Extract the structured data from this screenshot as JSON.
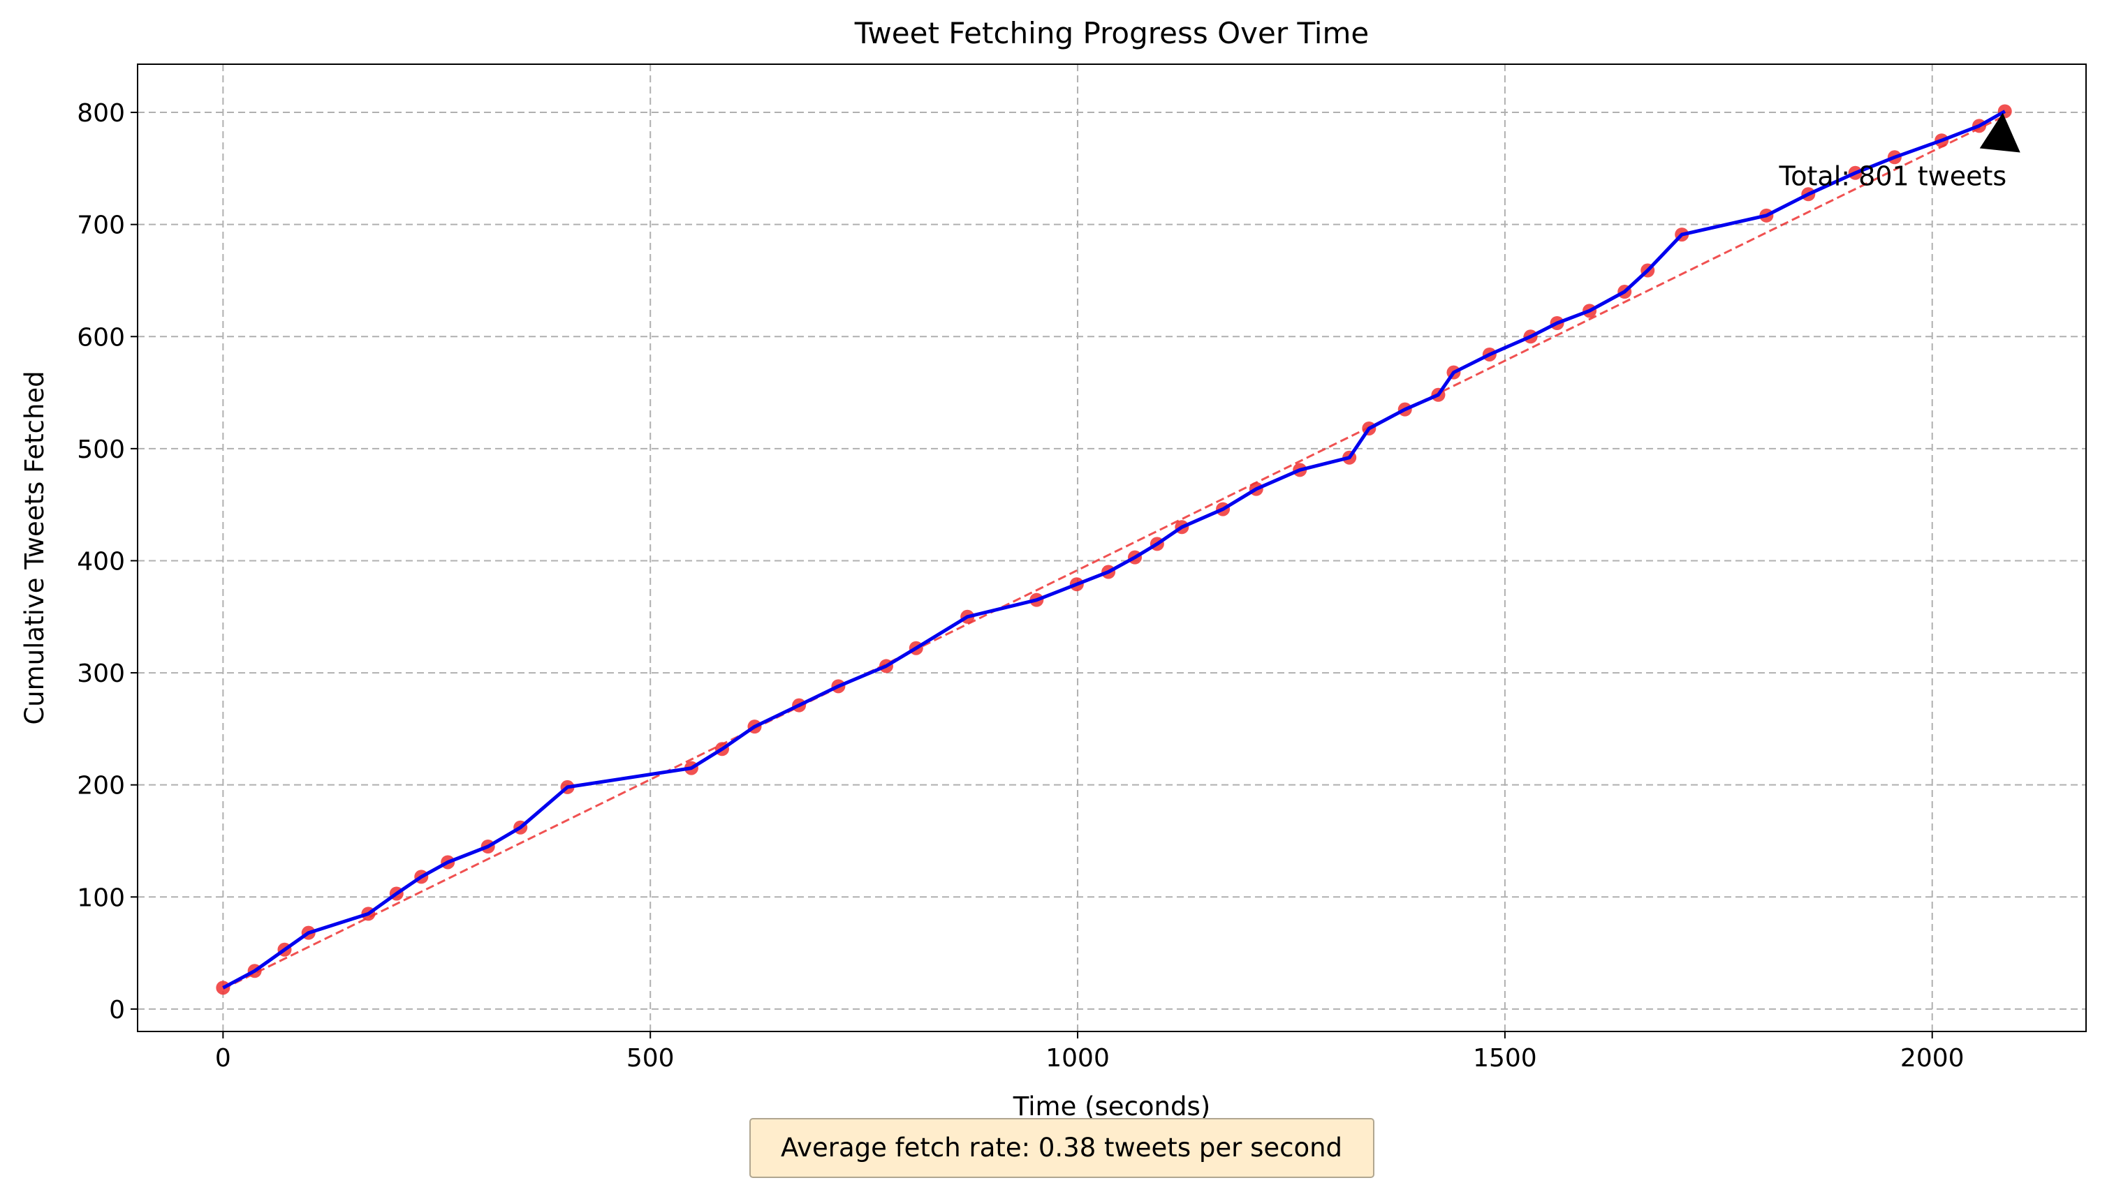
{
  "chart_data": {
    "type": "line",
    "title": "Tweet Fetching Progress Over Time",
    "xlabel": "Time (seconds)",
    "ylabel": "Cumulative Tweets Fetched",
    "xlim": [
      -100,
      2180
    ],
    "ylim": [
      -20,
      843
    ],
    "xticks": [
      0,
      500,
      1000,
      1500,
      2000
    ],
    "yticks": [
      0,
      100,
      200,
      300,
      400,
      500,
      600,
      700,
      800
    ],
    "grid": true,
    "series": [
      {
        "type": "line-with-markers",
        "line_color": "#0000ee",
        "marker_color": "#ee3333",
        "x": [
          0,
          37,
          72,
          100,
          170,
          203,
          232,
          263,
          310,
          348,
          403,
          548,
          584,
          622,
          674,
          720,
          776,
          811,
          871,
          952,
          999,
          1036,
          1067,
          1093,
          1122,
          1170,
          1209,
          1260,
          1318,
          1341,
          1383,
          1422,
          1440,
          1482,
          1530,
          1561,
          1599,
          1640,
          1667,
          1707,
          1806,
          1855,
          1910,
          1956,
          2011,
          2055,
          2085
        ],
        "y": [
          19,
          34,
          53,
          68,
          85,
          103,
          118,
          131,
          145,
          162,
          198,
          215,
          232,
          252,
          271,
          288,
          306,
          322,
          350,
          365,
          379,
          390,
          403,
          415,
          430,
          446,
          464,
          481,
          492,
          518,
          535,
          548,
          568,
          584,
          600,
          612,
          623,
          640,
          659,
          691,
          708,
          727,
          746,
          760,
          775,
          788,
          801
        ]
      },
      {
        "type": "trend",
        "style": "dashed",
        "color": "#ee3333",
        "x": [
          0,
          2085
        ],
        "y": [
          18,
          797
        ]
      }
    ],
    "annotation": {
      "text": "Total: 801 tweets",
      "point": [
        2085,
        801
      ],
      "text_position": [
        1780,
        760
      ]
    },
    "footer_note": "Average fetch rate: 0.38 tweets per second",
    "footer_bg": "#ffedcc"
  }
}
